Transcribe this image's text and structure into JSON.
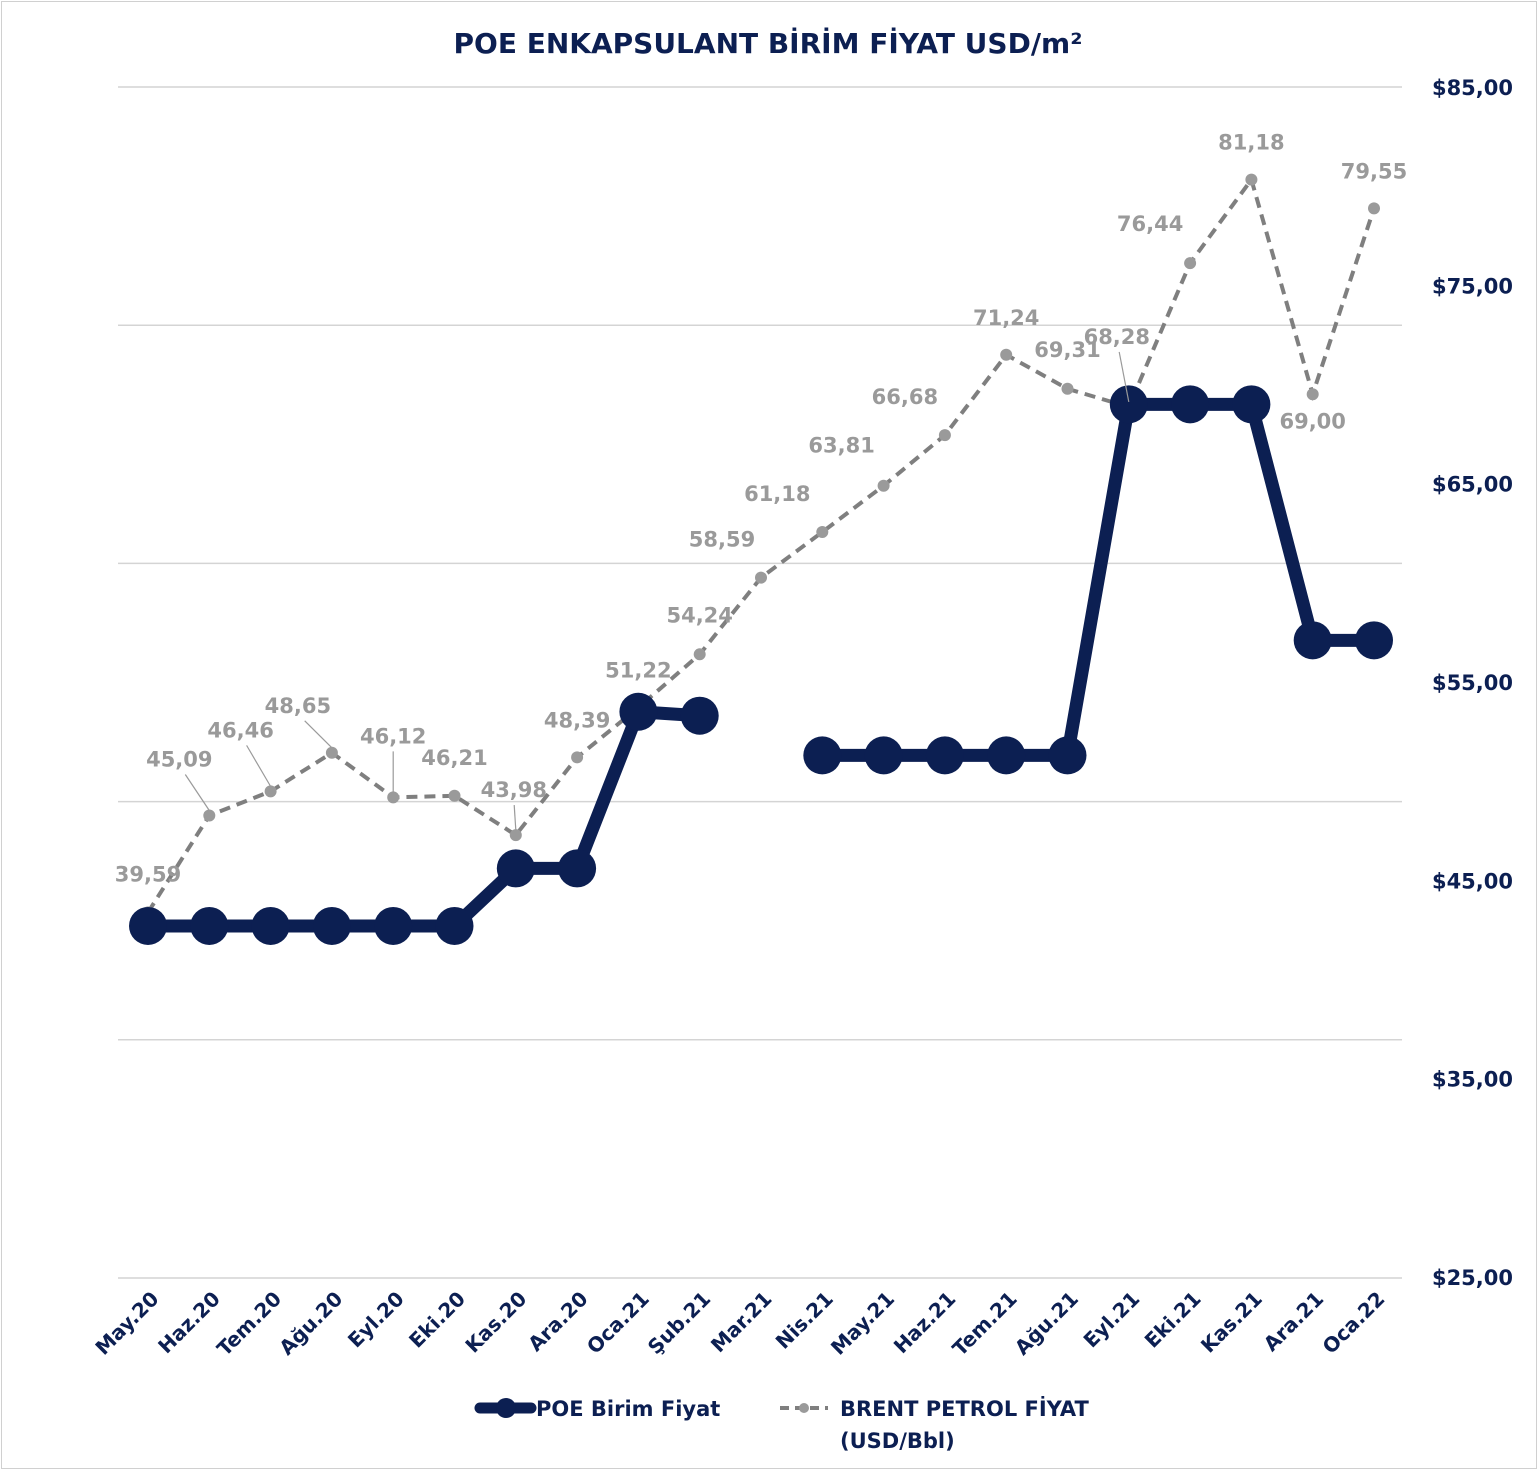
{
  "chart_data": {
    "type": "line",
    "title": "POE ENKAPSULANT BİRİM FİYAT USD/m²",
    "categories": [
      "May.20",
      "Haz.20",
      "Tem.20",
      "Ağu.20",
      "Eyl.20",
      "Eki.20",
      "Kas.20",
      "Ara.20",
      "Oca.21",
      "Şub.21",
      "Mar.21",
      "Nis.21",
      "May.21",
      "Haz.21",
      "Tem.21",
      "Ağu.21",
      "Eyl.21",
      "Eki.21",
      "Kas.21",
      "Ara.21",
      "Oca.22"
    ],
    "y_axis_right": {
      "ticks": [
        "$85,00",
        "$75,00",
        "$65,00",
        "$55,00",
        "$45,00",
        "$35,00",
        "$25,00"
      ],
      "range": [
        25,
        85
      ]
    },
    "brent_axis_hidden_range": [
      18.84,
      86.44
    ],
    "grid": true,
    "legend_position": "bottom",
    "series": [
      {
        "name": "POE Birim Fiyat",
        "axis": "right",
        "color": "#0c1f52",
        "style": "solid-markers",
        "values": [
          42.7,
          42.7,
          42.7,
          42.7,
          42.7,
          42.7,
          45.6,
          45.6,
          53.5,
          53.3,
          null,
          51.3,
          51.3,
          51.3,
          51.3,
          51.3,
          69.0,
          69.0,
          69.0,
          57.1,
          57.1
        ]
      },
      {
        "name": "BRENT PETROL FİYAT",
        "name_line2": "(USD/Bbl)",
        "axis": "hidden",
        "color": "#7f7f7f",
        "style": "dashed-markers",
        "values": [
          39.59,
          45.09,
          46.46,
          48.65,
          46.12,
          46.21,
          43.98,
          48.39,
          51.22,
          54.24,
          58.59,
          61.18,
          63.81,
          66.68,
          71.24,
          69.31,
          68.28,
          76.44,
          81.18,
          69.0,
          79.55
        ],
        "labels": [
          "39,59",
          "45,09",
          "46,46",
          "48,65",
          "46,12",
          "46,21",
          "43,98",
          "48,39",
          "51,22",
          "54,24",
          "58,59",
          "61,18",
          "63,81",
          "66,68",
          "71,24",
          "69,31",
          "68,28",
          "76,44",
          "81,18",
          "69,00",
          "79,55"
        ]
      }
    ]
  }
}
